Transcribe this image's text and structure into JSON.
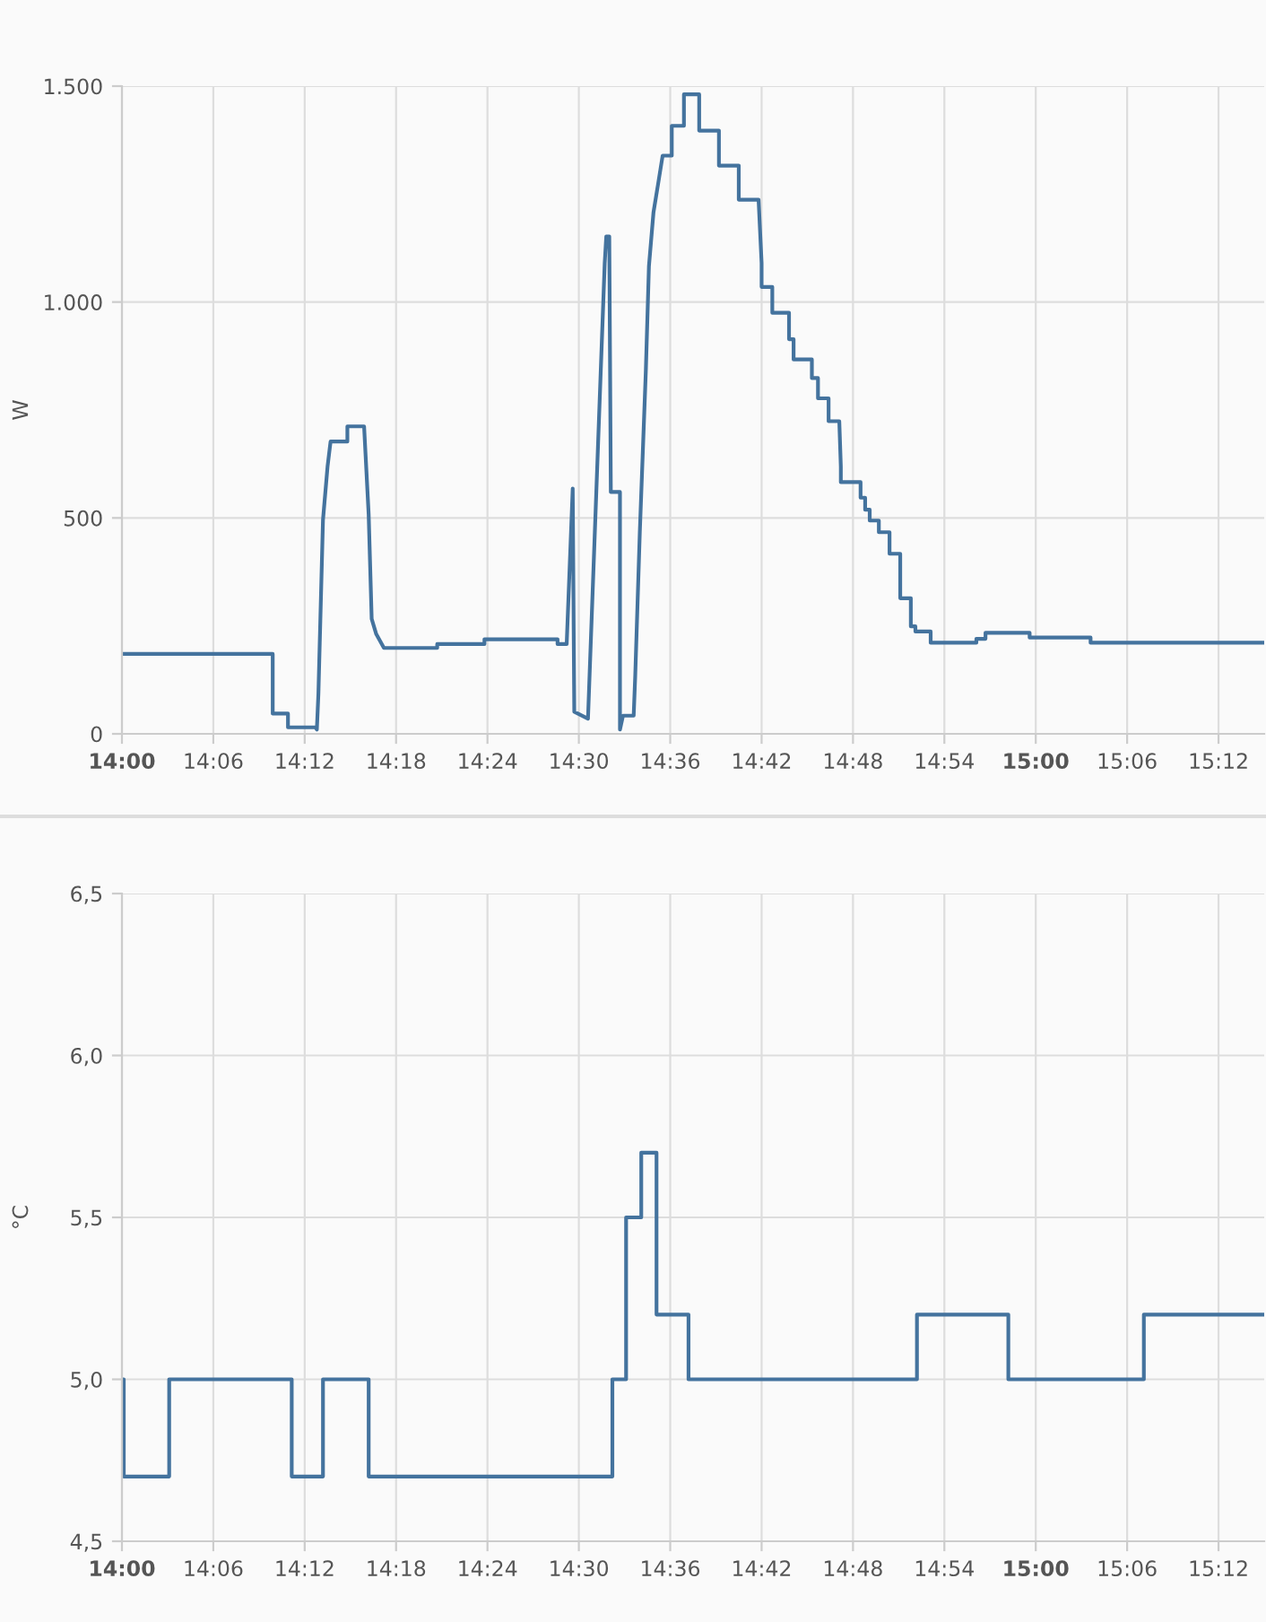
{
  "chart_data": [
    {
      "type": "line",
      "ylabel": "W",
      "grid": true,
      "marker": "none",
      "line_style": "solid",
      "xlim": [
        14,
        15.25
      ],
      "xticks": [
        {
          "value": 14,
          "label": "14:00"
        },
        {
          "value": 14.1,
          "label": "14:06"
        },
        {
          "value": 14.2,
          "label": "14:12"
        },
        {
          "value": 14.3,
          "label": "14:18"
        },
        {
          "value": 14.4,
          "label": "14:24"
        },
        {
          "value": 14.5,
          "label": "14:30"
        },
        {
          "value": 14.6,
          "label": "14:36"
        },
        {
          "value": 14.7,
          "label": "14:42"
        },
        {
          "value": 14.8,
          "label": "14:48"
        },
        {
          "value": 14.9,
          "label": "14:54"
        },
        {
          "value": 15,
          "label": "15:00"
        },
        {
          "value": 15.1,
          "label": "15:06"
        },
        {
          "value": 15.2,
          "label": "15:12"
        }
      ],
      "ylim": [
        0,
        1500
      ],
      "yticks": [
        0,
        500,
        {
          "value": 1000,
          "label": "1.000"
        },
        {
          "value": 1500,
          "label": "1.500"
        }
      ],
      "series": [
        {
          "color": "#44739e",
          "x": [
            14.0,
            14.165,
            14.165,
            14.1817,
            14.1817,
            14.2117,
            14.2133,
            14.215,
            14.22,
            14.225,
            14.2283,
            14.2467,
            14.2467,
            14.265,
            14.27,
            14.2733,
            14.2783,
            14.2867,
            14.345,
            14.345,
            14.3967,
            14.3967,
            14.4767,
            14.4767,
            14.4867,
            14.4933,
            14.495,
            14.51,
            14.5283,
            14.53,
            14.5333,
            14.535,
            14.545,
            14.545,
            14.5483,
            14.56,
            14.5617,
            14.5667,
            14.5733,
            14.5767,
            14.5817,
            14.5867,
            14.5917,
            14.6017,
            14.6017,
            14.615,
            14.615,
            14.6317,
            14.6317,
            14.6533,
            14.6533,
            14.675,
            14.675,
            14.6967,
            14.7,
            14.7,
            14.7117,
            14.7117,
            14.73,
            14.73,
            14.735,
            14.735,
            14.755,
            14.755,
            14.7617,
            14.7617,
            14.7733,
            14.7733,
            14.785,
            14.7867,
            14.7867,
            14.8083,
            14.8083,
            14.8133,
            14.8133,
            14.8183,
            14.8183,
            14.8283,
            14.8283,
            14.84,
            14.84,
            14.8517,
            14.8517,
            14.8633,
            14.8633,
            14.8683,
            14.8683,
            14.885,
            14.885,
            14.935,
            14.935,
            14.945,
            14.945,
            14.9933,
            14.9933,
            15.06,
            15.06,
            15.25
          ],
          "values": [
            185,
            185,
            47,
            47,
            15,
            15,
            10,
            93,
            495,
            619,
            677,
            677,
            712,
            712,
            508,
            266,
            231,
            199,
            199,
            208,
            208,
            219,
            219,
            208,
            208,
            568,
            51,
            35,
            1090,
            1152,
            1152,
            560,
            560,
            10,
            42,
            42,
            134,
            466,
            840,
            1083,
            1208,
            1273,
            1339,
            1339,
            1408,
            1408,
            1481,
            1481,
            1397,
            1397,
            1316,
            1316,
            1237,
            1237,
            1090,
            1035,
            1035,
            975,
            975,
            914,
            914,
            867,
            867,
            824,
            824,
            777,
            777,
            724,
            724,
            619,
            583,
            583,
            547,
            547,
            519,
            519,
            494,
            494,
            467,
            467,
            417,
            417,
            314,
            314,
            249,
            249,
            237,
            237,
            211,
            211,
            220,
            220,
            234,
            234,
            223,
            223,
            211,
            211
          ]
        }
      ]
    },
    {
      "type": "step",
      "ylabel": "°C",
      "grid": true,
      "marker": "none",
      "line_style": "solid",
      "xlim": [
        14,
        15.25
      ],
      "xticks": [
        {
          "value": 14,
          "label": "14:00"
        },
        {
          "value": 14.1,
          "label": "14:06"
        },
        {
          "value": 14.2,
          "label": "14:12"
        },
        {
          "value": 14.3,
          "label": "14:18"
        },
        {
          "value": 14.4,
          "label": "14:24"
        },
        {
          "value": 14.5,
          "label": "14:30"
        },
        {
          "value": 14.6,
          "label": "14:36"
        },
        {
          "value": 14.7,
          "label": "14:42"
        },
        {
          "value": 14.8,
          "label": "14:48"
        },
        {
          "value": 14.9,
          "label": "14:54"
        },
        {
          "value": 15,
          "label": "15:00"
        },
        {
          "value": 15.1,
          "label": "15:06"
        },
        {
          "value": 15.2,
          "label": "15:12"
        }
      ],
      "ylim": [
        4.5,
        6.5
      ],
      "yticks": [
        {
          "value": 4.5,
          "label": "4,5"
        },
        {
          "value": 5.0,
          "label": "5,0"
        },
        {
          "value": 5.5,
          "label": "5,5"
        },
        {
          "value": 6.0,
          "label": "6,0"
        },
        {
          "value": 6.5,
          "label": "6,5"
        }
      ],
      "series": [
        {
          "color": "#44739e",
          "x": [
            14.0,
            14.002,
            14.0517,
            14.1858,
            14.22,
            14.27,
            14.5367,
            14.5517,
            14.5683,
            14.585,
            14.62,
            14.87,
            14.97,
            15.1183,
            15.25
          ],
          "values": [
            5.0,
            4.7,
            5.0,
            4.7,
            5.0,
            4.7,
            5.0,
            5.5,
            5.7,
            5.2,
            5.0,
            5.2,
            5.0,
            5.2,
            5.2
          ]
        }
      ]
    }
  ]
}
